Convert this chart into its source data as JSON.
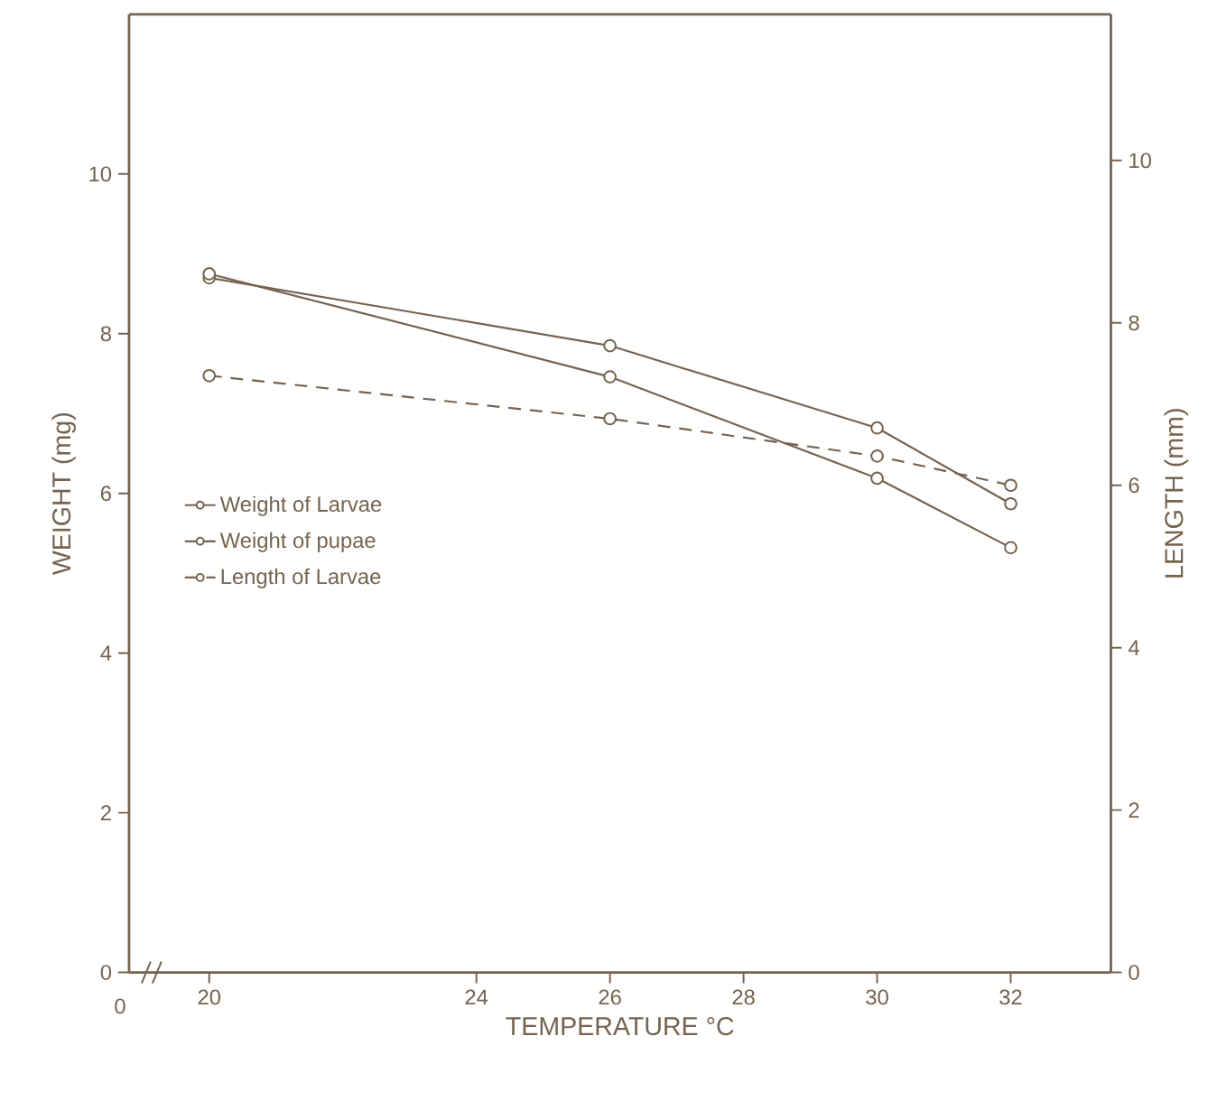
{
  "chart_data": {
    "type": "line",
    "xlabel": "TEMPERATURE °C",
    "ylabel": "WEIGHT (mg)",
    "y2label": "LENGTH (mm)",
    "x": [
      20,
      26,
      30,
      32
    ],
    "xlim": [
      18.8,
      33.5
    ],
    "xticks": [
      20,
      24,
      26,
      28,
      30,
      32
    ],
    "annotations": [
      "0"
    ],
    "ylim": [
      0,
      12
    ],
    "yticks": [
      0,
      2,
      4,
      6,
      8,
      10
    ],
    "y2lim": [
      0,
      11.8
    ],
    "y2ticks": [
      0,
      2,
      4,
      6,
      8,
      10
    ],
    "series": [
      {
        "name": "Weight of Larvae",
        "color": "#76634f",
        "values": [
          8.7,
          7.85,
          6.82,
          5.87
        ],
        "marker": "circle",
        "line_style": "solid"
      },
      {
        "name": "Weight of pupae",
        "color": "#76634f",
        "values": [
          8.75,
          7.46,
          6.19,
          5.32
        ],
        "marker": "circle",
        "line_style": "solid"
      },
      {
        "name": "Length of Larvae",
        "color": "#76634f",
        "values": [
          7.35,
          6.82,
          6.36,
          6.0
        ],
        "marker": "circle",
        "line_style": "dashed",
        "axis": "y2"
      }
    ],
    "legend": "left",
    "grid": false
  }
}
